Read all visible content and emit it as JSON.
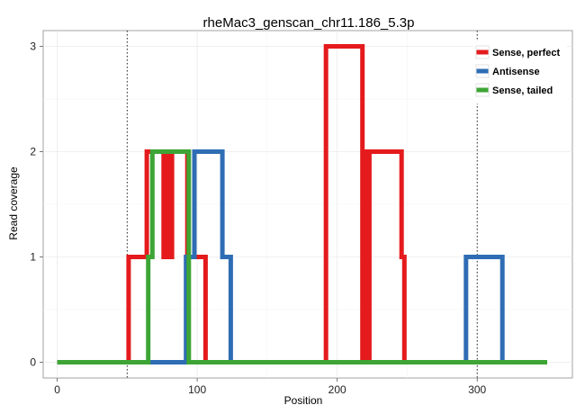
{
  "chart_data": {
    "type": "line",
    "title": "rheMac3_genscan_chr11.186_5.3p",
    "xlabel": "Position",
    "ylabel": "Read coverage",
    "xlim": [
      -10,
      368
    ],
    "ylim": [
      -0.15,
      3.15
    ],
    "x_ticks": [
      0,
      100,
      200,
      300
    ],
    "y_ticks": [
      0,
      1,
      2,
      3
    ],
    "vlines": [
      50,
      300
    ],
    "grid": true,
    "legend_position": "top-right",
    "series": [
      {
        "name": "Sense, perfect",
        "color": "#E41A1C",
        "points": [
          [
            0,
            0
          ],
          [
            51,
            0
          ],
          [
            51,
            1
          ],
          [
            64,
            1
          ],
          [
            64,
            2
          ],
          [
            76,
            2
          ],
          [
            76,
            1
          ],
          [
            78,
            1
          ],
          [
            78,
            2
          ],
          [
            80,
            2
          ],
          [
            80,
            1
          ],
          [
            82,
            1
          ],
          [
            82,
            2
          ],
          [
            93,
            2
          ],
          [
            93,
            1
          ],
          [
            106,
            1
          ],
          [
            106,
            0
          ],
          [
            192,
            0
          ],
          [
            192,
            3
          ],
          [
            218,
            3
          ],
          [
            218,
            0
          ],
          [
            220,
            0
          ],
          [
            220,
            2
          ],
          [
            222,
            2
          ],
          [
            222,
            0
          ],
          [
            223,
            0
          ],
          [
            223,
            2
          ],
          [
            246,
            2
          ],
          [
            246,
            1
          ],
          [
            248,
            1
          ],
          [
            248,
            0
          ],
          [
            350,
            0
          ]
        ]
      },
      {
        "name": "Antisense",
        "color": "#2E6DB4",
        "points": [
          [
            0,
            0
          ],
          [
            92,
            0
          ],
          [
            92,
            1
          ],
          [
            98,
            1
          ],
          [
            98,
            2
          ],
          [
            118,
            2
          ],
          [
            118,
            1
          ],
          [
            124,
            1
          ],
          [
            124,
            0
          ],
          [
            292,
            0
          ],
          [
            292,
            1
          ],
          [
            318,
            1
          ],
          [
            318,
            0
          ],
          [
            350,
            0
          ]
        ]
      },
      {
        "name": "Sense, tailed",
        "color": "#3DA535",
        "points": [
          [
            0,
            0
          ],
          [
            65,
            0
          ],
          [
            65,
            1
          ],
          [
            68,
            1
          ],
          [
            68,
            2
          ],
          [
            94,
            2
          ],
          [
            94,
            0
          ],
          [
            350,
            0
          ]
        ]
      }
    ]
  }
}
